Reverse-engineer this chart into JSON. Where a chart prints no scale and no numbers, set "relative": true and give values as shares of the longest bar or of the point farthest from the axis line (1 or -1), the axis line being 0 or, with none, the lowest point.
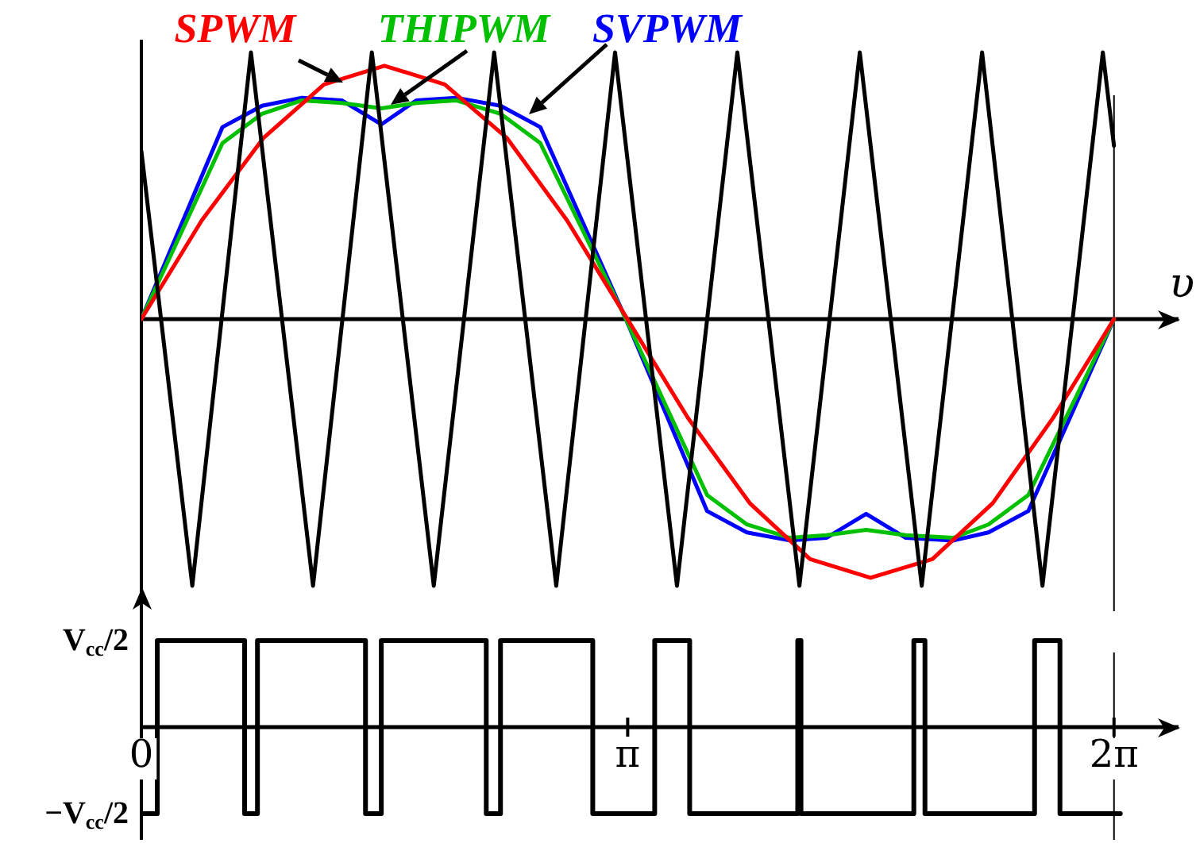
{
  "chart_data": [
    {
      "type": "line",
      "relative": true,
      "xlabel": "υ",
      "legend": false,
      "xlim": [
        0,
        6.7
      ],
      "series": [
        {
          "color": "#000000",
          "x": [
            0,
            0.329,
            0.708,
            1.109,
            1.489,
            1.889,
            2.279,
            2.68,
            3.06,
            3.46,
            3.85,
            4.251,
            4.641,
            5.041,
            5.431,
            5.821,
            6.211,
            6.283
          ],
          "values": [
            0.63,
            -1,
            1,
            -1,
            1,
            -1,
            1,
            -1,
            1,
            -1,
            1,
            -1,
            1,
            -1,
            1,
            -1,
            1,
            0.65
          ]
        },
        {
          "name": "SPWM",
          "color": "#ff0000",
          "x": [
            0,
            0.39,
            0.79,
            1.18,
            1.57,
            1.96,
            2.36,
            2.75,
            3.14,
            3.53,
            3.93,
            4.32,
            4.71,
            5.11,
            5.5,
            5.89,
            6.283
          ],
          "values": [
            0,
            0.37,
            0.68,
            0.88,
            0.95,
            0.88,
            0.68,
            0.37,
            0,
            -0.37,
            -0.69,
            -0.9,
            -0.97,
            -0.9,
            -0.69,
            -0.37,
            0
          ]
        },
        {
          "name": "THIPWM",
          "color": "#00c000",
          "x": [
            0,
            0.524,
            0.78,
            1.037,
            1.294,
            1.55,
            1.776,
            2.033,
            2.32,
            2.577,
            3.13,
            3.655,
            3.912,
            4.189,
            4.425,
            4.682,
            4.938,
            5.246,
            5.472,
            5.729,
            6.283
          ],
          "values": [
            0,
            0.66,
            0.77,
            0.82,
            0.81,
            0.79,
            0.81,
            0.82,
            0.77,
            0.66,
            0,
            -0.66,
            -0.77,
            -0.82,
            -0.81,
            -0.79,
            -0.81,
            -0.82,
            -0.77,
            -0.66,
            0
          ]
        },
        {
          "name": "SVPWM",
          "color": "#0000ff",
          "x": [
            0,
            0.524,
            0.78,
            1.037,
            1.294,
            1.55,
            1.776,
            2.033,
            2.32,
            2.577,
            3.13,
            3.655,
            3.912,
            4.189,
            4.425,
            4.682,
            4.938,
            5.246,
            5.472,
            5.729,
            6.283
          ],
          "values": [
            0,
            0.72,
            0.8,
            0.83,
            0.82,
            0.73,
            0.82,
            0.83,
            0.8,
            0.72,
            0,
            -0.72,
            -0.8,
            -0.83,
            -0.82,
            -0.73,
            -0.82,
            -0.83,
            -0.8,
            -0.72,
            0
          ]
        }
      ],
      "ref_lines": [
        {
          "axis": "x",
          "value": 6.2832,
          "color": "#000000"
        }
      ]
    },
    {
      "type": "step",
      "xlim": [
        0,
        6.7
      ],
      "relative": true,
      "legend": false,
      "xticks": [
        {
          "value": 0,
          "label": "0"
        },
        {
          "value": 3.1416,
          "label": "π"
        },
        {
          "value": 6.2832,
          "label": "2π"
        }
      ],
      "annotations": [
        "V$_{cc}$/2",
        "−V$_{cc}$/2"
      ],
      "x": [
        0,
        0.103,
        0.667,
        0.75,
        1.448,
        1.55,
        2.228,
        2.32,
        2.916,
        3.316,
        3.542,
        4.24,
        4.261,
        4.99,
        5.062,
        5.77,
        5.934,
        6.324
      ],
      "series": [
        {
          "color": "#000000",
          "values": [
            -1,
            1,
            -1,
            1,
            -1,
            1,
            -1,
            1,
            -1,
            1,
            -1,
            1,
            -1,
            1,
            -1,
            1,
            -1,
            -1
          ]
        }
      ],
      "ref_lines": [
        {
          "axis": "x",
          "value": 6.2832,
          "color": "#000000"
        }
      ]
    }
  ]
}
